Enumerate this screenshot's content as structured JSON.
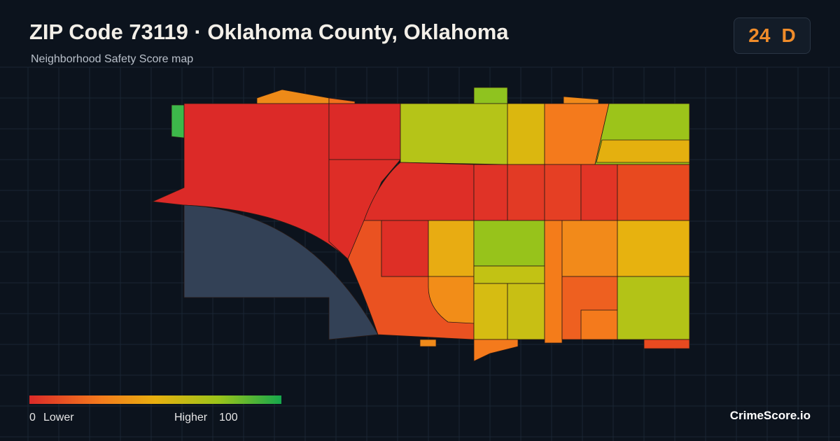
{
  "header": {
    "title": "ZIP Code 73119 · Oklahoma County, Oklahoma",
    "subtitle": "Neighborhood Safety Score map"
  },
  "score": {
    "value": 24,
    "grade": "D"
  },
  "legend": {
    "min": 0,
    "min_label": "Lower",
    "max_label": "Higher",
    "max": 100
  },
  "brand": "CrimeScore.io"
}
